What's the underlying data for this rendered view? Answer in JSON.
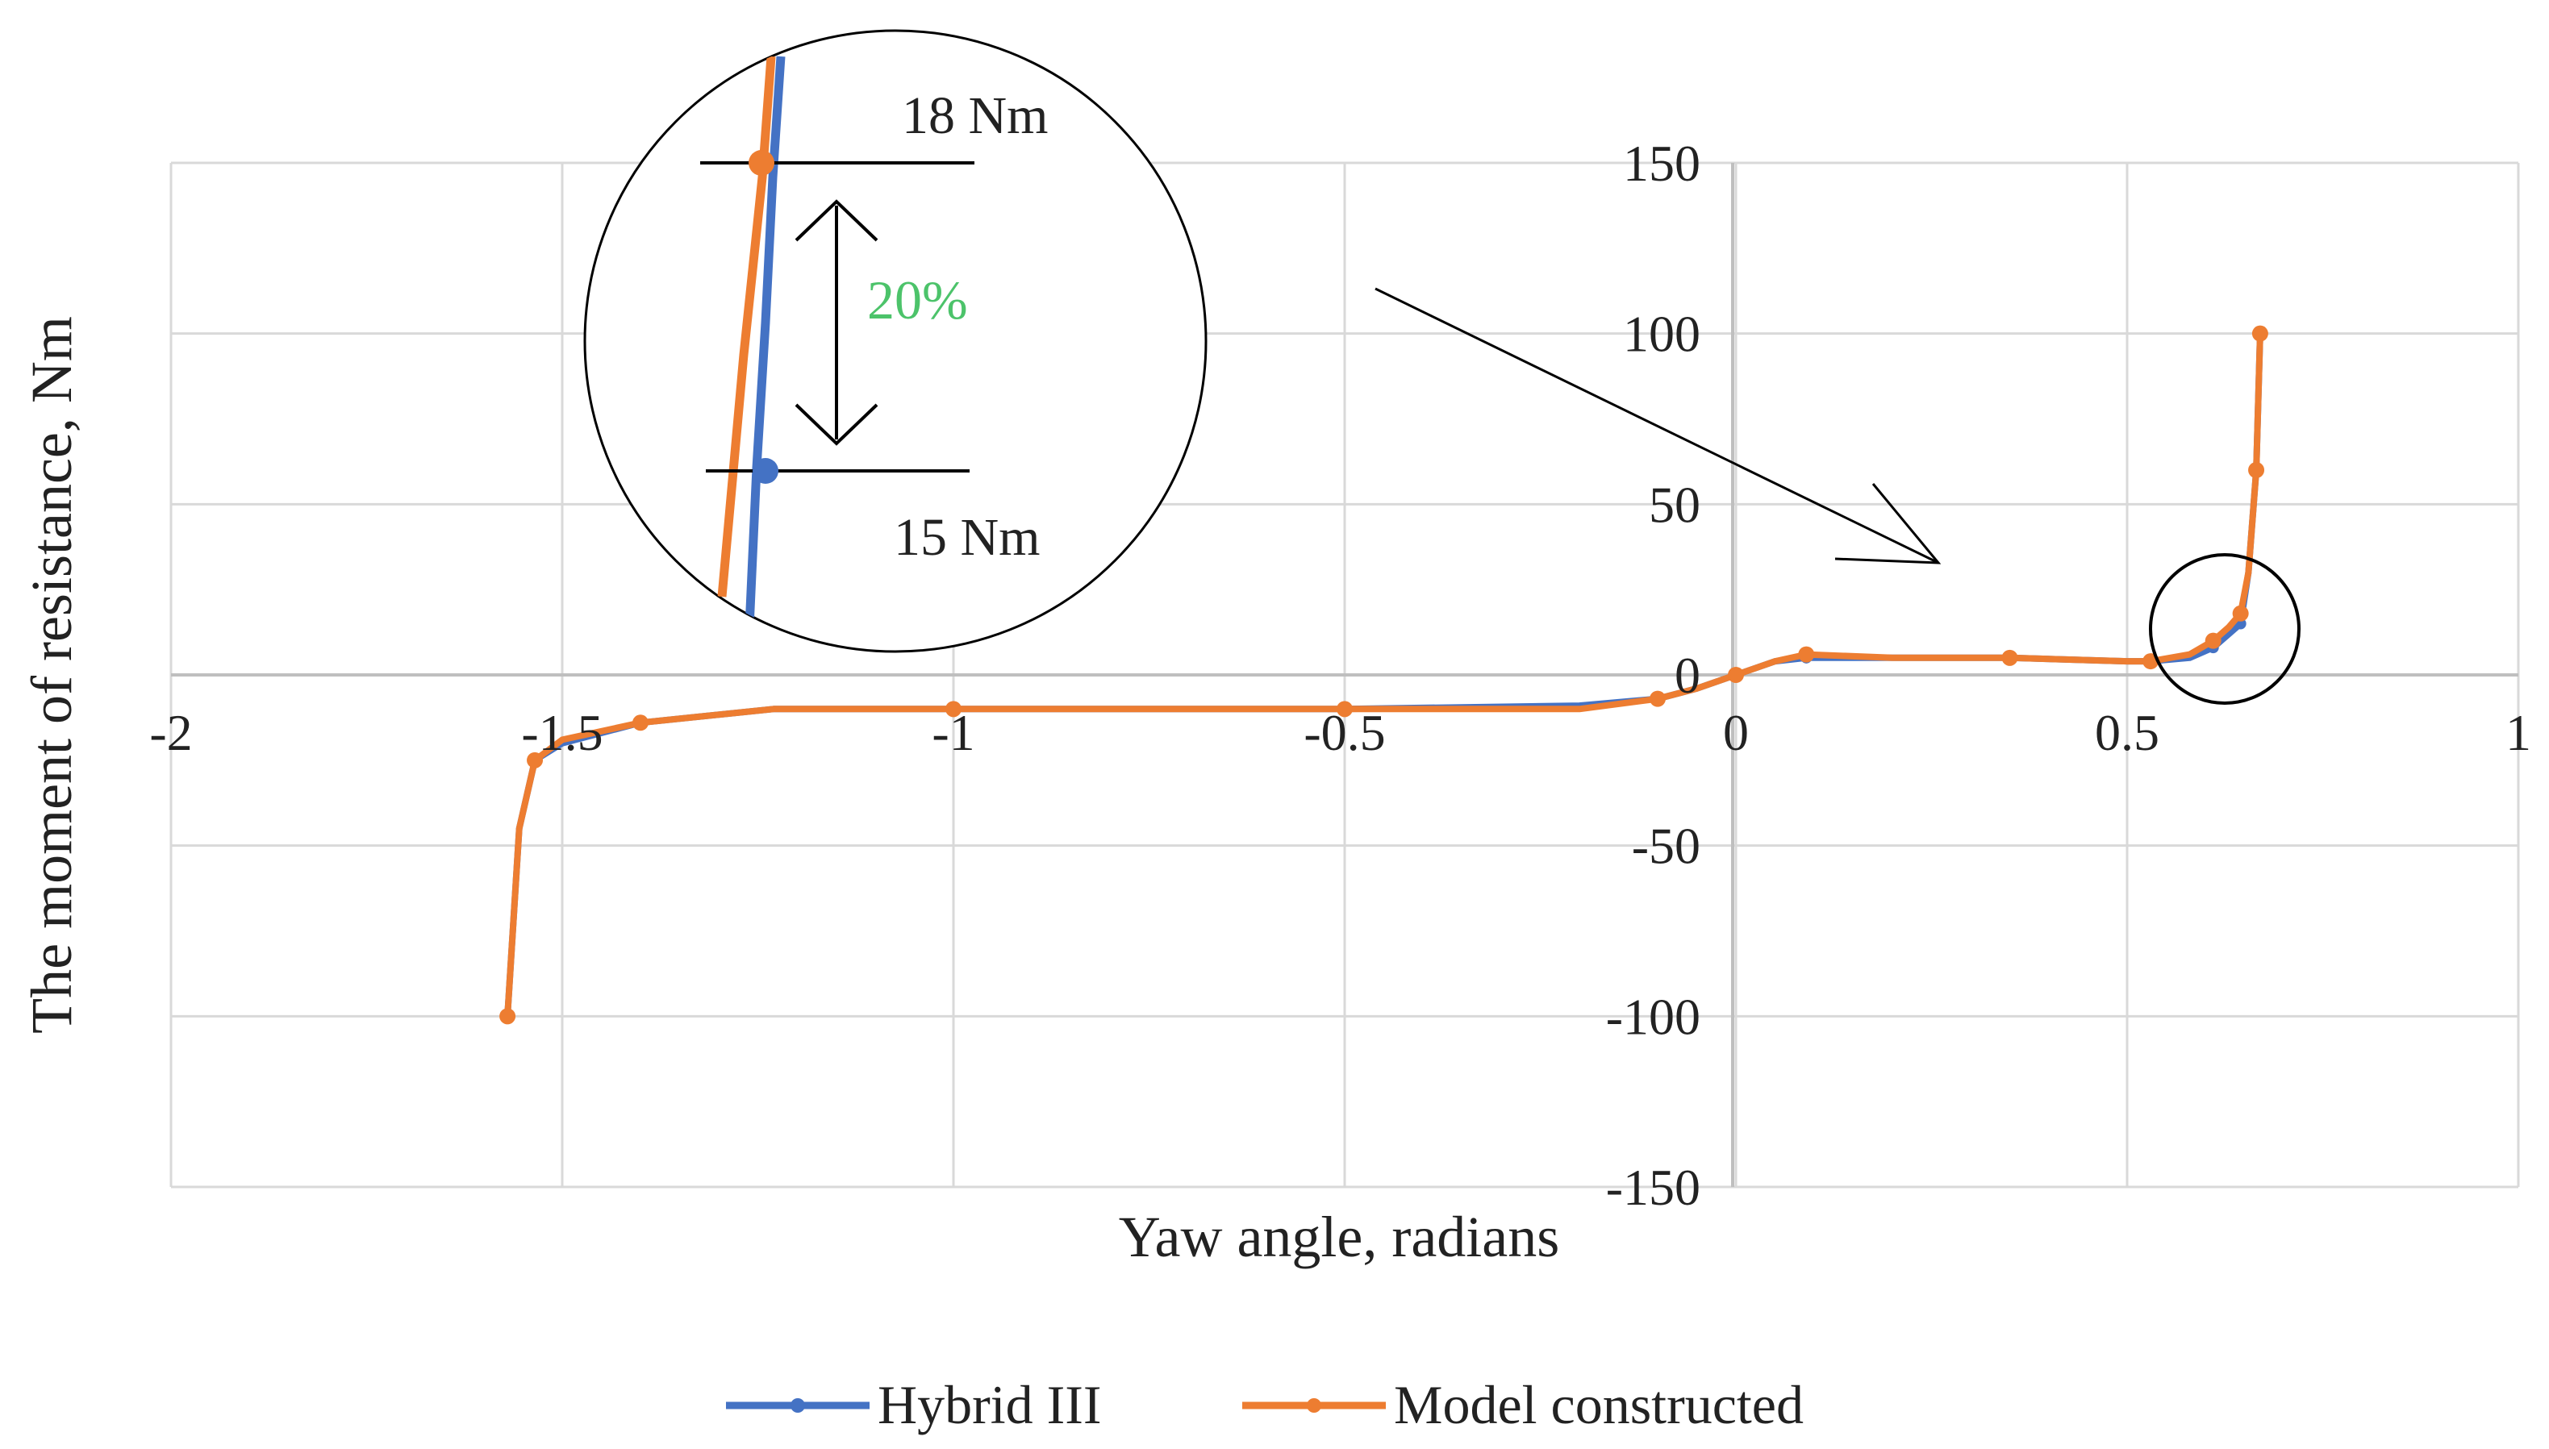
{
  "chart_data": {
    "type": "line",
    "xlabel": "Yaw  angle, radians",
    "ylabel": "The moment  of resistance, Nm",
    "xlim": [
      -2,
      1
    ],
    "ylim": [
      -150,
      150
    ],
    "x_ticks": [
      "-2",
      "-1.5",
      "-1",
      "-0.5",
      "0",
      "0.5",
      "1"
    ],
    "y_ticks": [
      "150",
      "100",
      "50",
      "0",
      "-50",
      "-100",
      "-150"
    ],
    "grid": true,
    "legend_position": "bottom",
    "series": [
      {
        "name": "Hybrid III",
        "color": "#4472c4",
        "points": [
          [
            -1.57,
            -100
          ],
          [
            -1.555,
            -45
          ],
          [
            -1.535,
            -25
          ],
          [
            -1.5,
            -20
          ],
          [
            -1.4,
            -14
          ],
          [
            -1.23,
            -10
          ],
          [
            -1,
            -10
          ],
          [
            -0.7,
            -10
          ],
          [
            -0.5,
            -10
          ],
          [
            -0.2,
            -9
          ],
          [
            -0.1,
            -7
          ],
          [
            -0.05,
            -4
          ],
          [
            0,
            0
          ],
          [
            0.05,
            4
          ],
          [
            0.09,
            5
          ],
          [
            0.2,
            5
          ],
          [
            0.35,
            5
          ],
          [
            0.5,
            4
          ],
          [
            0.53,
            4
          ],
          [
            0.58,
            5
          ],
          [
            0.61,
            8
          ],
          [
            0.63,
            12
          ],
          [
            0.645,
            15
          ],
          [
            0.655,
            30
          ],
          [
            0.665,
            60
          ],
          [
            0.67,
            100
          ]
        ]
      },
      {
        "name": "Model constructed",
        "color": "#ed7d31",
        "points": [
          [
            -1.57,
            -100
          ],
          [
            -1.555,
            -45
          ],
          [
            -1.535,
            -25
          ],
          [
            -1.5,
            -19
          ],
          [
            -1.4,
            -14
          ],
          [
            -1.23,
            -10
          ],
          [
            -1,
            -10
          ],
          [
            -0.7,
            -10
          ],
          [
            -0.5,
            -10
          ],
          [
            -0.2,
            -10
          ],
          [
            -0.1,
            -7
          ],
          [
            -0.05,
            -4
          ],
          [
            0,
            0
          ],
          [
            0.05,
            4
          ],
          [
            0.09,
            6
          ],
          [
            0.2,
            5
          ],
          [
            0.35,
            5
          ],
          [
            0.5,
            4
          ],
          [
            0.53,
            4
          ],
          [
            0.58,
            6
          ],
          [
            0.61,
            10
          ],
          [
            0.63,
            14
          ],
          [
            0.645,
            18
          ],
          [
            0.655,
            30
          ],
          [
            0.665,
            60
          ],
          [
            0.67,
            100
          ]
        ]
      }
    ],
    "inset": {
      "upper_label": "18 Nm",
      "lower_label": "15 Nm",
      "difference_label": "20%"
    }
  }
}
